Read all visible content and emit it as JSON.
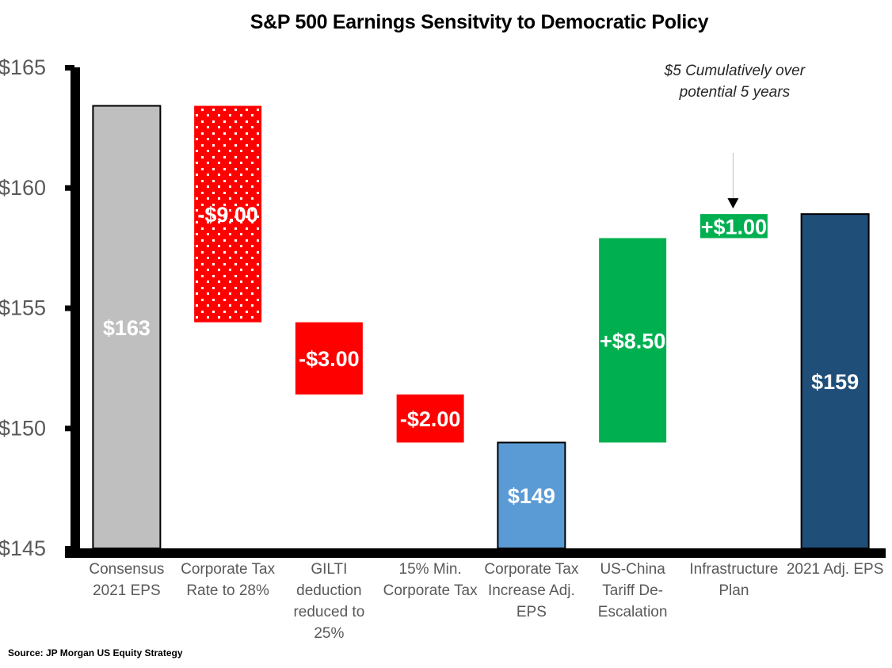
{
  "chart_data": {
    "type": "bar",
    "subtype": "waterfall",
    "title": "S&P 500 Earnings Sensitvity to Democratic Policy",
    "xlabel": "",
    "ylabel": "",
    "ylim": [
      145,
      165
    ],
    "yticks": [
      145,
      150,
      155,
      160,
      165
    ],
    "ytick_labels": [
      "$145",
      "$150",
      "$155",
      "$160",
      "$165"
    ],
    "grid": false,
    "categories": [
      [
        "Consensus",
        "2021 EPS"
      ],
      [
        "Corporate Tax",
        "Rate to 28%"
      ],
      [
        "GILTI",
        "deduction",
        "reduced to",
        "25%"
      ],
      [
        "15% Min.",
        "Corporate Tax"
      ],
      [
        "Corporate Tax",
        "Increase Adj.",
        "EPS"
      ],
      [
        "US-China",
        "Tariff De-",
        "Escalation"
      ],
      [
        "Infrastructure",
        "Plan"
      ],
      [
        "2021 Adj. EPS"
      ]
    ],
    "bars": [
      {
        "kind": "total",
        "start": 145,
        "end": 163.4,
        "label": "$163",
        "color": "#BFBFBF",
        "outline": true
      },
      {
        "kind": "delta",
        "start": 163.4,
        "end": 154.4,
        "value": -9.0,
        "label": "-$9.00",
        "color": "#FF0000",
        "pattern": "dots"
      },
      {
        "kind": "delta",
        "start": 154.4,
        "end": 151.4,
        "value": -3.0,
        "label": "-$3.00",
        "color": "#FF0000"
      },
      {
        "kind": "delta",
        "start": 151.4,
        "end": 149.4,
        "value": -2.0,
        "label": "-$2.00",
        "color": "#FF0000"
      },
      {
        "kind": "total",
        "start": 145,
        "end": 149.4,
        "label": "$149",
        "color": "#5B9BD5",
        "outline": true
      },
      {
        "kind": "delta",
        "start": 149.4,
        "end": 157.9,
        "value": 8.5,
        "label": "+$8.50",
        "color": "#00B050"
      },
      {
        "kind": "delta",
        "start": 157.9,
        "end": 158.9,
        "value": 1.0,
        "label": "+$1.00",
        "color": "#00B050"
      },
      {
        "kind": "total",
        "start": 145,
        "end": 158.9,
        "label": "$159",
        "color": "#1F4E79",
        "outline": true
      }
    ],
    "annotations": [
      {
        "text": [
          "$5 Cumulatively over",
          "potential 5 years"
        ],
        "target_category": 6,
        "arrow": true
      }
    ],
    "legend": "none"
  },
  "source": "Source: JP Morgan US Equity Strategy"
}
